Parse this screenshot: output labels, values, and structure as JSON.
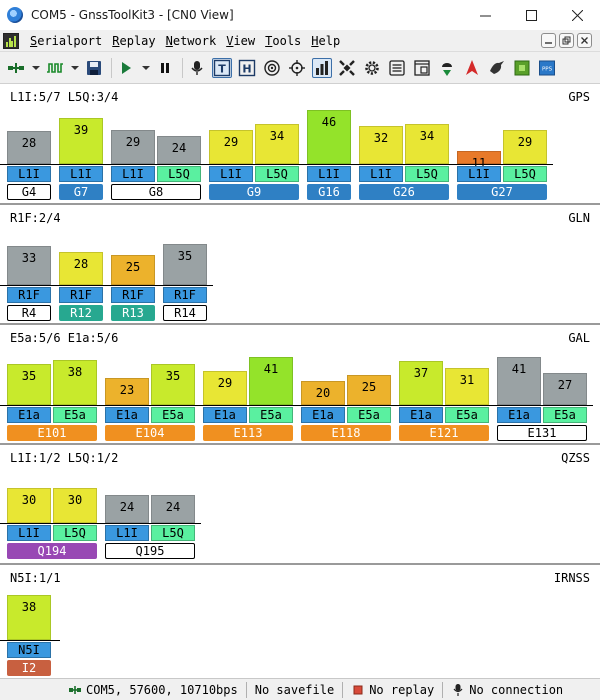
{
  "window": {
    "title": "COM5 - GnssToolKit3 - [CN0 View]",
    "icon": "globe-icon"
  },
  "menu": {
    "items": [
      "Serialport",
      "Replay",
      "Network",
      "View",
      "Tools",
      "Help"
    ],
    "mnemonics": [
      "S",
      "R",
      "N",
      "V",
      "T",
      "H"
    ]
  },
  "toolbar": {
    "buttons": [
      "connect-icon",
      "waveform-icon",
      "save-icon",
      "play-icon",
      "pause-icon",
      "microphone-icon",
      "text-view-icon",
      "hex-view-icon",
      "target-icon",
      "crosshair-icon",
      "cn0-chart-icon",
      "satellite-icon",
      "cog-icon",
      "list-icon",
      "terminal-icon",
      "download-icon",
      "rocket-icon",
      "bird-icon",
      "green-box-icon",
      "blue-box-icon"
    ],
    "labels": {
      "text_view": "T",
      "hex_view": "H",
      "blue_box": "PPS"
    }
  },
  "colors": {
    "green": "#94e32a",
    "yellow_green": "#c8ea2c",
    "yellow": "#e8e634",
    "orange": "#ecb22c",
    "red": "#e87a2a",
    "gray": "#9aa2a4",
    "sig_blue": "#3a98df",
    "sig_green": "#5af0a0",
    "sv_blue": "#2f80c4",
    "sv_teal": "#27a890",
    "sv_orange": "#f09020",
    "sv_purple": "#9848b4",
    "sv_brown": "#c86040"
  },
  "sections": [
    {
      "name": "GPS",
      "label": "L1I:5/7 L5Q:3/4",
      "satellites": [
        {
          "sv": "G4",
          "sv_style": "outline",
          "signals": [
            {
              "sig": "L1I",
              "cn0": 28,
              "color": "gray"
            }
          ]
        },
        {
          "sv": "G7",
          "sv_style": "filled",
          "sv_color": "sv_blue",
          "signals": [
            {
              "sig": "L1I",
              "cn0": 39,
              "color": "yellow_green"
            }
          ]
        },
        {
          "sv": "G8",
          "sv_style": "outline",
          "signals": [
            {
              "sig": "L1I",
              "cn0": 29,
              "color": "gray"
            },
            {
              "sig": "L5Q",
              "cn0": 24,
              "color": "gray"
            }
          ]
        },
        {
          "sv": "G9",
          "sv_style": "filled",
          "sv_color": "sv_blue",
          "signals": [
            {
              "sig": "L1I",
              "cn0": 29,
              "color": "yellow"
            },
            {
              "sig": "L5Q",
              "cn0": 34,
              "color": "yellow"
            }
          ]
        },
        {
          "sv": "G16",
          "sv_style": "filled",
          "sv_color": "sv_blue",
          "signals": [
            {
              "sig": "L1I",
              "cn0": 46,
              "color": "green"
            }
          ]
        },
        {
          "sv": "G26",
          "sv_style": "filled",
          "sv_color": "sv_blue",
          "signals": [
            {
              "sig": "L1I",
              "cn0": 32,
              "color": "yellow"
            },
            {
              "sig": "L5Q",
              "cn0": 34,
              "color": "yellow"
            }
          ]
        },
        {
          "sv": "G27",
          "sv_style": "filled",
          "sv_color": "sv_blue",
          "signals": [
            {
              "sig": "L1I",
              "cn0": 11,
              "color": "red"
            },
            {
              "sig": "L5Q",
              "cn0": 29,
              "color": "yellow"
            }
          ]
        }
      ]
    },
    {
      "name": "GLN",
      "label": "R1F:2/4",
      "satellites": [
        {
          "sv": "R4",
          "sv_style": "outline",
          "signals": [
            {
              "sig": "R1F",
              "cn0": 33,
              "color": "gray"
            }
          ]
        },
        {
          "sv": "R12",
          "sv_style": "filled",
          "sv_color": "sv_teal",
          "signals": [
            {
              "sig": "R1F",
              "cn0": 28,
              "color": "yellow"
            }
          ]
        },
        {
          "sv": "R13",
          "sv_style": "filled",
          "sv_color": "sv_teal",
          "signals": [
            {
              "sig": "R1F",
              "cn0": 25,
              "color": "orange"
            }
          ]
        },
        {
          "sv": "R14",
          "sv_style": "outline",
          "signals": [
            {
              "sig": "R1F",
              "cn0": 35,
              "color": "gray"
            }
          ]
        }
      ]
    },
    {
      "name": "GAL",
      "label": "E5a:5/6 E1a:5/6",
      "satellites": [
        {
          "sv": "E101",
          "sv_style": "filled",
          "sv_color": "sv_orange",
          "signals": [
            {
              "sig": "E1a",
              "cn0": 35,
              "color": "yellow_green"
            },
            {
              "sig": "E5a",
              "cn0": 38,
              "color": "yellow_green"
            }
          ]
        },
        {
          "sv": "E104",
          "sv_style": "filled",
          "sv_color": "sv_orange",
          "signals": [
            {
              "sig": "E1a",
              "cn0": 23,
              "color": "orange"
            },
            {
              "sig": "E5a",
              "cn0": 35,
              "color": "yellow_green"
            }
          ]
        },
        {
          "sv": "E113",
          "sv_style": "filled",
          "sv_color": "sv_orange",
          "signals": [
            {
              "sig": "E1a",
              "cn0": 29,
              "color": "yellow"
            },
            {
              "sig": "E5a",
              "cn0": 41,
              "color": "green"
            }
          ]
        },
        {
          "sv": "E118",
          "sv_style": "filled",
          "sv_color": "sv_orange",
          "signals": [
            {
              "sig": "E1a",
              "cn0": 20,
              "color": "orange"
            },
            {
              "sig": "E5a",
              "cn0": 25,
              "color": "orange"
            }
          ]
        },
        {
          "sv": "E121",
          "sv_style": "filled",
          "sv_color": "sv_orange",
          "signals": [
            {
              "sig": "E1a",
              "cn0": 37,
              "color": "yellow_green"
            },
            {
              "sig": "E5a",
              "cn0": 31,
              "color": "yellow"
            }
          ]
        },
        {
          "sv": "E131",
          "sv_style": "outline",
          "signals": [
            {
              "sig": "E1a",
              "cn0": 41,
              "color": "gray"
            },
            {
              "sig": "E5a",
              "cn0": 27,
              "color": "gray"
            }
          ]
        }
      ]
    },
    {
      "name": "QZSS",
      "label": "L1I:1/2 L5Q:1/2",
      "satellites": [
        {
          "sv": "Q194",
          "sv_style": "filled",
          "sv_color": "sv_purple",
          "signals": [
            {
              "sig": "L1I",
              "cn0": 30,
              "color": "yellow"
            },
            {
              "sig": "L5Q",
              "cn0": 30,
              "color": "yellow"
            }
          ]
        },
        {
          "sv": "Q195",
          "sv_style": "outline",
          "signals": [
            {
              "sig": "L1I",
              "cn0": 24,
              "color": "gray"
            },
            {
              "sig": "L5Q",
              "cn0": 24,
              "color": "gray"
            }
          ]
        }
      ]
    },
    {
      "name": "IRNSS",
      "label": "N5I:1/1",
      "satellites": [
        {
          "sv": "I2",
          "sv_style": "filled",
          "sv_color": "sv_brown",
          "signals": [
            {
              "sig": "N5I",
              "cn0": 38,
              "color": "yellow_green"
            }
          ]
        }
      ]
    }
  ],
  "status": {
    "port": "COM5, 57600, 10710bps",
    "savefile": "No savefile",
    "replay": "No replay",
    "connection": "No connection"
  }
}
